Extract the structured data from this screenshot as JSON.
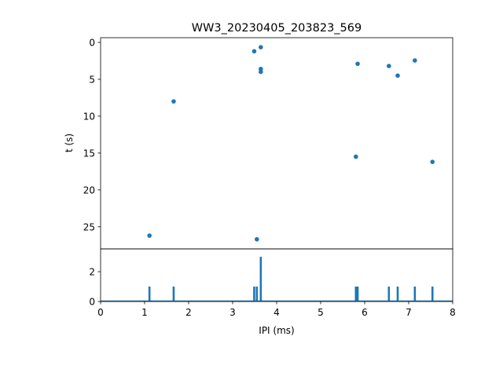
{
  "chart_data": [
    {
      "type": "scatter",
      "title": "WW3_20230405_203823_569",
      "xlabel": "",
      "ylabel": "t (s)",
      "xlim": [
        0,
        8
      ],
      "ylim": [
        28.0,
        -0.64
      ],
      "y_inverted": true,
      "yticks": [
        0,
        5,
        10,
        15,
        20,
        25
      ],
      "color": "#1f77b4",
      "points": [
        {
          "x": 3.49,
          "y": 1.2
        },
        {
          "x": 3.64,
          "y": 0.65
        },
        {
          "x": 3.64,
          "y": 3.6
        },
        {
          "x": 3.64,
          "y": 4.0
        },
        {
          "x": 1.66,
          "y": 8.0
        },
        {
          "x": 5.84,
          "y": 2.9
        },
        {
          "x": 6.55,
          "y": 3.2
        },
        {
          "x": 6.75,
          "y": 4.5
        },
        {
          "x": 7.14,
          "y": 2.45
        },
        {
          "x": 5.8,
          "y": 15.5
        },
        {
          "x": 7.54,
          "y": 16.2
        },
        {
          "x": 1.11,
          "y": 26.2
        },
        {
          "x": 3.55,
          "y": 26.7
        }
      ]
    },
    {
      "type": "bar",
      "xlabel": "IPI (ms)",
      "ylabel": "",
      "xlim": [
        0,
        8
      ],
      "ylim": [
        0,
        3.53
      ],
      "xticks": [
        0,
        1,
        2,
        3,
        4,
        5,
        6,
        7,
        8
      ],
      "yticks": [
        0,
        2
      ],
      "color": "#1f77b4",
      "bins": [
        {
          "x": 1.11,
          "count": 1
        },
        {
          "x": 1.66,
          "count": 1
        },
        {
          "x": 3.49,
          "count": 1
        },
        {
          "x": 3.55,
          "count": 1
        },
        {
          "x": 3.64,
          "count": 3
        },
        {
          "x": 5.8,
          "count": 1
        },
        {
          "x": 5.84,
          "count": 1
        },
        {
          "x": 6.55,
          "count": 1
        },
        {
          "x": 6.75,
          "count": 1
        },
        {
          "x": 7.14,
          "count": 1
        },
        {
          "x": 7.54,
          "count": 1
        }
      ]
    }
  ]
}
